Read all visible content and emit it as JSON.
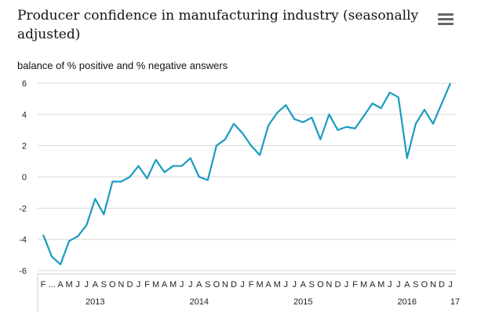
{
  "title": "Producer confidence in manufacturing industry (seasonally adjusted)",
  "menu_icon": "hamburger-menu-icon",
  "chart_data": {
    "type": "line",
    "title": "Producer confidence in manufacturing industry (seasonally adjusted)",
    "ylabel": "balance of % positive and % negative answers",
    "xlabel": "",
    "ylim": [
      -6,
      6
    ],
    "yticks": [
      "6",
      "4",
      "2",
      "0",
      "-2",
      "-4",
      "-6"
    ],
    "grid": true,
    "legend": "none",
    "line_color": "#1a9bc0",
    "month_labels": [
      "F",
      "...",
      "A",
      "M",
      "J",
      "J",
      "A",
      "S",
      "O",
      "N",
      "D",
      "J",
      "F",
      "M",
      "A",
      "M",
      "J",
      "J",
      "A",
      "S",
      "O",
      "N",
      "D",
      "J",
      "F",
      "M",
      "A",
      "M",
      "J",
      "J",
      "A",
      "S",
      "O",
      "N",
      "D",
      "J",
      "F",
      "M",
      "A",
      "M",
      "J",
      "J",
      "A",
      "S",
      "O",
      "N",
      "D",
      "J"
    ],
    "years": [
      {
        "label": "2013",
        "index": 6
      },
      {
        "label": "2014",
        "index": 18
      },
      {
        "label": "2015",
        "index": 30
      },
      {
        "label": "2016",
        "index": 42
      },
      {
        "label": "17",
        "index": 48
      }
    ],
    "series": [
      {
        "values": [
          -3.7,
          -5.1,
          -5.6,
          -4.1,
          -3.8,
          -3.1,
          -1.4,
          -2.4,
          -0.3,
          -0.3,
          0.0,
          0.7,
          -0.1,
          1.1,
          0.3,
          0.7,
          0.7,
          1.2,
          0.0,
          -0.2,
          2.0,
          2.4,
          3.4,
          2.8,
          2.0,
          1.4,
          3.3,
          4.1,
          4.6,
          3.7,
          3.5,
          3.8,
          2.4,
          4.0,
          3.0,
          3.2,
          3.1,
          3.9,
          4.7,
          4.4,
          5.4,
          5.1,
          1.2,
          3.4,
          4.3,
          3.4,
          4.7,
          6.0
        ]
      }
    ]
  }
}
